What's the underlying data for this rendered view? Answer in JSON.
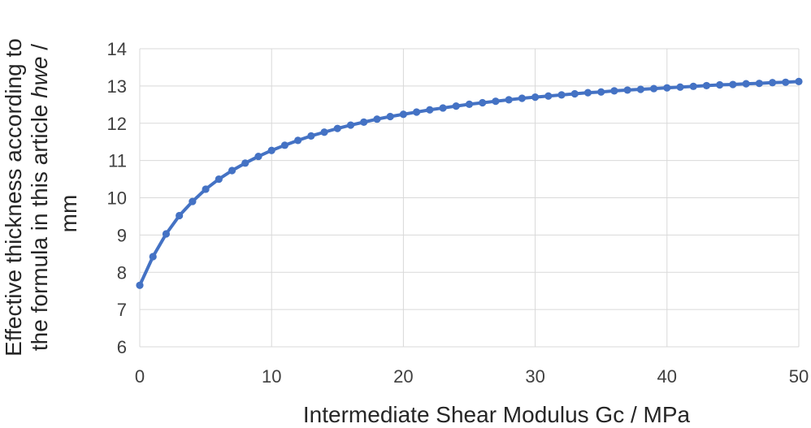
{
  "chart_data": {
    "type": "line",
    "title": "",
    "xlabel": "Intermediate Shear Modulus Gc / MPa",
    "ylabel_line1": "Effective thickness according to",
    "ylabel_line2_prefix": "the formula in this article ",
    "ylabel_line2_italic": "hwe",
    "ylabel_line2_suffix": " /",
    "ylabel_line3": "mm",
    "xlim": [
      0,
      50
    ],
    "ylim": [
      6,
      14
    ],
    "x_ticks": [
      "0",
      "10",
      "20",
      "30",
      "40",
      "50"
    ],
    "y_ticks": [
      "6",
      "7",
      "8",
      "9",
      "10",
      "11",
      "12",
      "13",
      "14"
    ],
    "grid": true,
    "legend": "none",
    "series": [
      {
        "name": "hwe",
        "color": "#4472C4",
        "x": [
          0,
          1,
          2,
          3,
          4,
          5,
          6,
          7,
          8,
          9,
          10,
          11,
          12,
          13,
          14,
          15,
          16,
          17,
          18,
          19,
          20,
          21,
          22,
          23,
          24,
          25,
          26,
          27,
          28,
          29,
          30,
          31,
          32,
          33,
          34,
          35,
          36,
          37,
          38,
          39,
          40,
          41,
          42,
          43,
          44,
          45,
          46,
          47,
          48,
          49,
          50
        ],
        "y": [
          7.65,
          8.42,
          9.03,
          9.52,
          9.9,
          10.23,
          10.5,
          10.73,
          10.93,
          11.11,
          11.27,
          11.41,
          11.54,
          11.66,
          11.76,
          11.86,
          11.95,
          12.03,
          12.11,
          12.18,
          12.24,
          12.3,
          12.36,
          12.41,
          12.46,
          12.51,
          12.55,
          12.59,
          12.63,
          12.67,
          12.7,
          12.73,
          12.76,
          12.79,
          12.82,
          12.84,
          12.87,
          12.89,
          12.91,
          12.93,
          12.95,
          12.97,
          12.99,
          13.01,
          13.03,
          13.04,
          13.06,
          13.07,
          13.09,
          13.1,
          13.12
        ]
      }
    ]
  }
}
